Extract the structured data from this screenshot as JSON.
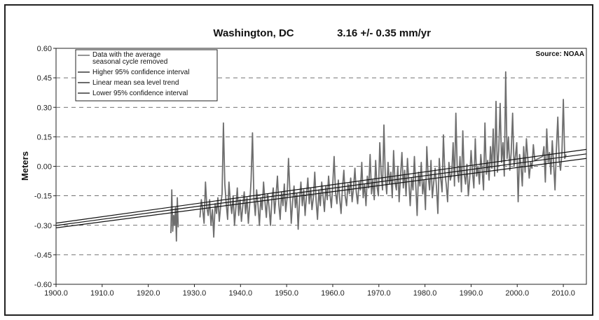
{
  "chart_data": {
    "type": "line",
    "title": "Washington, DC",
    "subtitle": "3.16 +/- 0.35 mm/yr",
    "source": "Source: NOAA",
    "xlabel": "",
    "ylabel": "Meters",
    "xlim": [
      1900,
      2015
    ],
    "ylim": [
      -0.6,
      0.6
    ],
    "x_ticks": [
      1900,
      1910,
      1920,
      1930,
      1940,
      1950,
      1960,
      1970,
      1980,
      1990,
      2000,
      2010
    ],
    "x_tick_labels": [
      "1900.0",
      "1910.0",
      "1920.0",
      "1930.0",
      "1940.0",
      "1950.0",
      "1960.0",
      "1970.0",
      "1980.0",
      "1990.0",
      "2000.0",
      "2010.0"
    ],
    "y_ticks": [
      -0.6,
      -0.45,
      -0.3,
      -0.15,
      0.0,
      0.15,
      0.3,
      0.45,
      0.6
    ],
    "y_tick_labels": [
      "-0.60",
      "-0.45",
      "-0.30",
      "-0.15",
      "0.00",
      "0.15",
      "0.30",
      "0.45",
      "0.60"
    ],
    "grid": "horizontal dashed",
    "legend_position": "top-left",
    "colors": {
      "data": "#6e6e6e",
      "trend": "#111111",
      "grid": "#444444"
    },
    "series": [
      {
        "name": "Data with the average seasonal cycle removed",
        "x": [
          1924.9,
          1925.1,
          1925.3,
          1925.5,
          1925.7,
          1925.9,
          1926.1,
          1926.3,
          1926.5,
          1931.2,
          1931.5,
          1931.8,
          1932.1,
          1932.4,
          1932.7,
          1933.0,
          1933.3,
          1933.6,
          1933.9,
          1934.2,
          1934.5,
          1934.8,
          1935.1,
          1935.4,
          1935.7,
          1936.0,
          1936.3,
          1936.6,
          1936.9,
          1937.2,
          1937.5,
          1937.8,
          1938.1,
          1938.4,
          1938.7,
          1939.0,
          1939.3,
          1939.6,
          1939.9,
          1940.2,
          1940.5,
          1940.8,
          1941.1,
          1941.4,
          1941.7,
          1942.0,
          1942.3,
          1942.6,
          1942.9,
          1943.2,
          1943.5,
          1943.8,
          1944.1,
          1944.4,
          1944.7,
          1945.0,
          1945.3,
          1945.6,
          1945.9,
          1946.2,
          1946.5,
          1946.8,
          1947.1,
          1947.4,
          1947.7,
          1948.0,
          1948.3,
          1948.6,
          1948.9,
          1949.2,
          1949.5,
          1949.8,
          1950.1,
          1950.4,
          1950.7,
          1951.0,
          1951.3,
          1951.6,
          1951.9,
          1952.2,
          1952.5,
          1952.8,
          1953.1,
          1953.4,
          1953.7,
          1954.0,
          1954.3,
          1954.6,
          1954.9,
          1955.2,
          1955.5,
          1955.8,
          1956.1,
          1956.4,
          1956.7,
          1957.0,
          1957.3,
          1957.6,
          1957.9,
          1958.2,
          1958.5,
          1958.8,
          1959.1,
          1959.4,
          1959.7,
          1960.0,
          1960.3,
          1960.6,
          1960.9,
          1961.2,
          1961.5,
          1961.8,
          1962.1,
          1962.4,
          1962.7,
          1963.0,
          1963.3,
          1963.6,
          1963.9,
          1964.2,
          1964.5,
          1964.8,
          1965.1,
          1965.4,
          1965.7,
          1966.0,
          1966.3,
          1966.6,
          1966.9,
          1967.2,
          1967.5,
          1967.8,
          1968.1,
          1968.4,
          1968.7,
          1969.0,
          1969.3,
          1969.6,
          1969.9,
          1970.2,
          1970.5,
          1970.8,
          1971.1,
          1971.4,
          1971.7,
          1972.0,
          1972.3,
          1972.6,
          1972.9,
          1973.2,
          1973.5,
          1973.8,
          1974.1,
          1974.4,
          1974.7,
          1975.0,
          1975.3,
          1975.6,
          1975.9,
          1976.2,
          1976.5,
          1976.8,
          1977.1,
          1977.4,
          1977.7,
          1978.0,
          1978.3,
          1978.6,
          1978.9,
          1979.2,
          1979.5,
          1979.8,
          1980.1,
          1980.4,
          1980.7,
          1981.0,
          1981.3,
          1981.6,
          1981.9,
          1982.2,
          1982.5,
          1982.8,
          1983.1,
          1983.4,
          1983.7,
          1984.0,
          1984.3,
          1984.6,
          1984.9,
          1985.2,
          1985.5,
          1985.8,
          1986.1,
          1986.4,
          1986.7,
          1987.0,
          1987.3,
          1987.6,
          1987.9,
          1988.2,
          1988.5,
          1988.8,
          1989.1,
          1989.4,
          1989.7,
          1990.0,
          1990.3,
          1990.6,
          1990.9,
          1991.2,
          1991.5,
          1991.8,
          1992.1,
          1992.4,
          1992.7,
          1993.0,
          1993.3,
          1993.6,
          1993.9,
          1994.2,
          1994.5,
          1994.8,
          1995.1,
          1995.4,
          1995.7,
          1996.0,
          1996.3,
          1996.6,
          1996.9,
          1997.2,
          1997.5,
          1997.8,
          1998.1,
          1998.4,
          1998.7,
          1999.0,
          1999.3,
          1999.6,
          1999.9,
          2000.2,
          2000.5,
          2000.8,
          2001.1,
          2001.4,
          2001.7,
          2002.0,
          2002.3,
          2002.6,
          2002.9,
          2003.2,
          2003.5,
          2003.8,
          2005.5,
          2005.8,
          2006.1,
          2006.4,
          2006.7,
          2007.0,
          2007.3,
          2007.6,
          2007.9,
          2008.2,
          2008.5,
          2008.8,
          2009.1,
          2009.4,
          2009.7,
          2010.0,
          2010.3,
          2010.6
        ],
        "y": [
          -0.34,
          -0.12,
          -0.33,
          -0.25,
          -0.3,
          -0.21,
          -0.38,
          -0.16,
          -0.31,
          -0.26,
          -0.17,
          -0.22,
          -0.29,
          -0.08,
          -0.21,
          -0.25,
          -0.17,
          -0.3,
          -0.22,
          -0.36,
          -0.19,
          -0.24,
          -0.16,
          -0.28,
          -0.2,
          -0.14,
          0.22,
          -0.09,
          -0.19,
          -0.27,
          -0.08,
          -0.18,
          -0.24,
          -0.15,
          -0.3,
          -0.21,
          -0.11,
          -0.25,
          -0.17,
          -0.28,
          -0.2,
          -0.13,
          -0.24,
          -0.16,
          -0.29,
          -0.19,
          -0.07,
          0.17,
          -0.16,
          -0.25,
          -0.12,
          -0.2,
          -0.3,
          -0.16,
          -0.22,
          -0.08,
          -0.18,
          -0.26,
          -0.14,
          -0.21,
          -0.3,
          -0.17,
          -0.11,
          -0.24,
          -0.15,
          -0.05,
          -0.19,
          -0.27,
          -0.13,
          -0.2,
          -0.09,
          -0.23,
          -0.16,
          0.04,
          -0.12,
          -0.29,
          -0.18,
          -0.1,
          -0.21,
          -0.14,
          -0.32,
          -0.17,
          -0.08,
          -0.2,
          -0.12,
          -0.25,
          -0.15,
          -0.06,
          -0.19,
          -0.11,
          -0.22,
          -0.16,
          -0.03,
          -0.18,
          -0.27,
          -0.12,
          -0.2,
          -0.08,
          -0.15,
          -0.23,
          -0.1,
          -0.17,
          -0.05,
          -0.14,
          -0.21,
          -0.09,
          0.05,
          -0.13,
          -0.19,
          -0.07,
          -0.16,
          -0.24,
          -0.11,
          -0.02,
          -0.15,
          -0.2,
          -0.09,
          -0.14,
          -0.06,
          -0.18,
          -0.11,
          -0.01,
          -0.13,
          -0.19,
          -0.08,
          -0.12,
          0.02,
          -0.16,
          -0.09,
          -0.2,
          -0.05,
          -0.11,
          0.06,
          -0.14,
          -0.07,
          -0.17,
          0.03,
          -0.1,
          -0.15,
          0.12,
          -0.04,
          -0.12,
          0.21,
          -0.06,
          -0.14,
          0.02,
          -0.09,
          -0.03,
          -0.16,
          0.08,
          -0.08,
          -0.12,
          0.0,
          -0.18,
          -0.05,
          0.07,
          -0.11,
          -0.02,
          -0.15,
          0.04,
          -0.08,
          -0.2,
          -0.06,
          -0.12,
          0.05,
          -0.09,
          -0.25,
          -0.03,
          -0.1,
          0.02,
          -0.14,
          -0.07,
          -0.22,
          0.1,
          -0.05,
          -0.12,
          0.03,
          -0.16,
          -0.08,
          -0.01,
          -0.11,
          -0.24,
          0.04,
          -0.06,
          -0.13,
          0.16,
          -0.03,
          -0.09,
          -0.18,
          0.02,
          -0.07,
          -0.04,
          0.12,
          -0.1,
          0.27,
          -0.02,
          -0.08,
          0.05,
          -0.13,
          0.18,
          -0.04,
          -0.09,
          0.01,
          -0.15,
          -0.06,
          0.08,
          -0.03,
          -0.11,
          0.14,
          -0.05,
          0.0,
          -0.09,
          0.06,
          -0.02,
          -0.12,
          0.22,
          -0.04,
          0.03,
          -0.07,
          0.1,
          -0.01,
          0.19,
          -0.05,
          0.33,
          -0.03,
          0.08,
          0.32,
          0.02,
          0.12,
          -0.05,
          0.48,
          0.04,
          0.15,
          -0.02,
          0.07,
          0.27,
          0.0,
          0.05,
          0.12,
          -0.18,
          0.06,
          0.01,
          -0.1,
          0.1,
          -0.03,
          0.14,
          0.04,
          -0.06,
          0.02,
          -0.01,
          0.11,
          0.03,
          0.05,
          0.1,
          -0.08,
          0.19,
          0.02,
          0.07,
          -0.04,
          0.13,
          0.01,
          -0.12,
          0.09,
          0.25,
          0.03,
          -0.02,
          0.07,
          0.34,
          0.04,
          0.06
        ]
      },
      {
        "name": "Higher 95% confidence interval",
        "x": [
          1900,
          2015
        ],
        "y": [
          -0.289,
          0.086
        ]
      },
      {
        "name": "Linear mean sea level trend",
        "x": [
          1900,
          2015
        ],
        "y": [
          -0.301,
          0.063
        ]
      },
      {
        "name": "Lower 95% confidence interval",
        "x": [
          1900,
          2015
        ],
        "y": [
          -0.313,
          0.04
        ]
      }
    ]
  }
}
